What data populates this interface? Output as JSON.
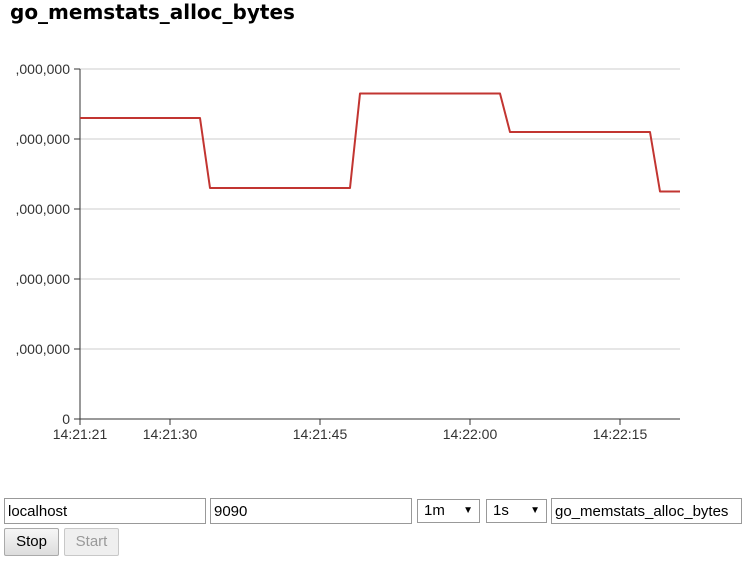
{
  "page": {
    "title": "go_memstats_alloc_bytes"
  },
  "chart_data": {
    "type": "line",
    "series": [
      {
        "values": [
          [
            0,
            8600000
          ],
          [
            12,
            8600000
          ],
          [
            13,
            6600000
          ],
          [
            27,
            6600000
          ],
          [
            28,
            9300000
          ],
          [
            42,
            9300000
          ],
          [
            43,
            8200000
          ],
          [
            57,
            8200000
          ],
          [
            58,
            6500000
          ],
          [
            60,
            6500000
          ]
        ],
        "color": "#c23531"
      }
    ],
    "x_ticks": [
      "14:21:21",
      "14:21:30",
      "14:21:45",
      "14:22:00",
      "14:22:15"
    ],
    "x_tick_positions": [
      0,
      9,
      24,
      39,
      54
    ],
    "y_ticks": [
      ",000,000",
      ",000,000",
      ",000,000",
      ",000,000",
      ",000,000",
      "0"
    ],
    "y_tick_values": [
      10000000,
      8000000,
      6000000,
      4000000,
      2000000,
      0
    ],
    "xlim": [
      0,
      60
    ],
    "ylim": [
      0,
      10000000
    ],
    "grid": true
  },
  "controls": {
    "host_value": "localhost",
    "port_value": "9090",
    "range_value": "1m",
    "step_value": "1s",
    "query_value": "go_memstats_alloc_bytes",
    "stop_label": "Stop",
    "start_label": "Start"
  },
  "icons": {
    "dropdown": "chevron-down-icon"
  }
}
